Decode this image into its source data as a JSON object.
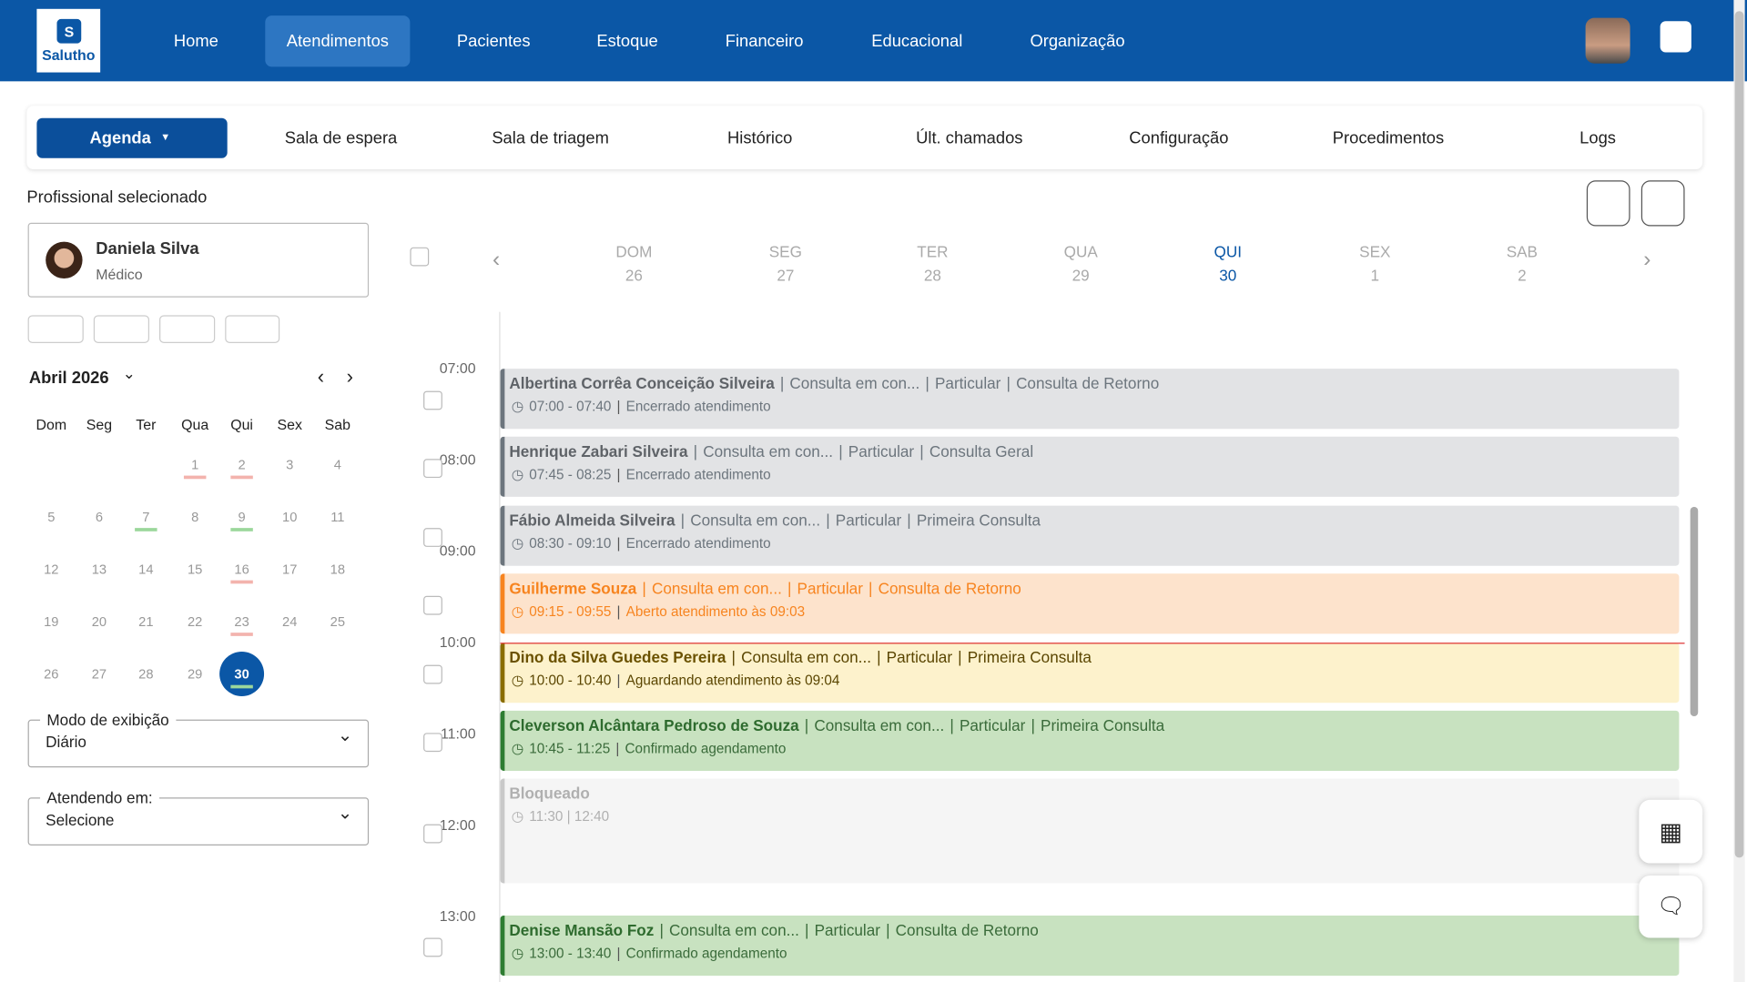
{
  "header": {
    "logo": "Salutho",
    "nav": [
      "Home",
      "Atendimentos",
      "Pacientes",
      "Estoque",
      "Financeiro",
      "Educacional",
      "Organização"
    ],
    "active_nav": 1
  },
  "tabs": {
    "items": [
      "Agenda",
      "Sala de espera",
      "Sala de triagem",
      "Histórico",
      "Últ. chamados",
      "Configuração",
      "Procedimentos",
      "Logs"
    ]
  },
  "professional": {
    "label": "Profissional selecionado",
    "name": "Daniela Silva",
    "role": "Médico"
  },
  "calendar": {
    "month": "Abril 2026",
    "weekdays": [
      "Dom",
      "Seg",
      "Ter",
      "Qua",
      "Qui",
      "Sex",
      "Sab"
    ],
    "weeks": [
      [
        null,
        null,
        null,
        "1",
        "2",
        "3",
        "4"
      ],
      [
        "5",
        "6",
        "7",
        "8",
        "9",
        "10",
        "11"
      ],
      [
        "12",
        "13",
        "14",
        "15",
        "16",
        "17",
        "18"
      ],
      [
        "19",
        "20",
        "21",
        "22",
        "23",
        "24",
        "25"
      ],
      [
        "26",
        "27",
        "28",
        "29",
        "30",
        null,
        null
      ]
    ],
    "selected": "30",
    "red_marks": [
      "1",
      "2",
      "16",
      "23"
    ],
    "green_marks": [
      "7",
      "9",
      "30"
    ]
  },
  "view_mode": {
    "label": "Modo de exibição",
    "value": "Diário"
  },
  "attending": {
    "label": "Atendendo em:",
    "value": "Selecione"
  },
  "week": {
    "days": [
      {
        "name": "DOM",
        "date": "26"
      },
      {
        "name": "SEG",
        "date": "27"
      },
      {
        "name": "TER",
        "date": "28"
      },
      {
        "name": "QUA",
        "date": "29"
      },
      {
        "name": "QUI",
        "date": "30"
      },
      {
        "name": "SEX",
        "date": "1"
      },
      {
        "name": "SAB",
        "date": "2"
      }
    ],
    "active": 4
  },
  "hours": [
    "07:00",
    "08:00",
    "09:00",
    "10:00",
    "11:00",
    "12:00",
    "13:00"
  ],
  "appointments": [
    {
      "patient": "Albertina Corrêa Conceição Silveira",
      "type": "Consulta em con...",
      "payment": "Particular",
      "kind": "Consulta de Retorno",
      "time": "07:00 - 07:40",
      "status": "Encerrado atendimento",
      "style": "done"
    },
    {
      "patient": "Henrique Zabari Silveira",
      "type": "Consulta em con...",
      "payment": "Particular",
      "kind": "Consulta Geral",
      "time": "07:45 - 08:25",
      "status": "Encerrado atendimento",
      "style": "done"
    },
    {
      "patient": "Fábio Almeida Silveira",
      "type": "Consulta em con...",
      "payment": "Particular",
      "kind": "Primeira Consulta",
      "time": "08:30 - 09:10",
      "status": "Encerrado atendimento",
      "style": "done"
    },
    {
      "patient": "Guilherme Souza",
      "type": "Consulta em con...",
      "payment": "Particular",
      "kind": "Consulta de Retorno",
      "time": "09:15 - 09:55",
      "status": "Aberto atendimento às 09:03",
      "style": "open"
    },
    {
      "patient": "Dino da Silva Guedes Pereira",
      "type": "Consulta em con...",
      "payment": "Particular",
      "kind": "Primeira Consulta",
      "time": "10:00 - 10:40",
      "status": "Aguardando atendimento às 09:04",
      "style": "waiting"
    },
    {
      "patient": "Cleverson Alcântara Pedroso de Souza",
      "type": "Consulta em con...",
      "payment": "Particular",
      "kind": "Primeira Consulta",
      "time": "10:45 - 11:25",
      "status": "Confirmado agendamento",
      "style": "confirmed"
    },
    {
      "patient": "Bloqueado",
      "time": "11:30 | 12:40",
      "style": "blocked"
    },
    {
      "patient": "Denise Mansão Foz",
      "type": "Consulta em con...",
      "payment": "Particular",
      "kind": "Consulta de Retorno",
      "time": "13:00 - 13:40",
      "status": "Confirmado agendamento",
      "style": "confirmed"
    }
  ]
}
